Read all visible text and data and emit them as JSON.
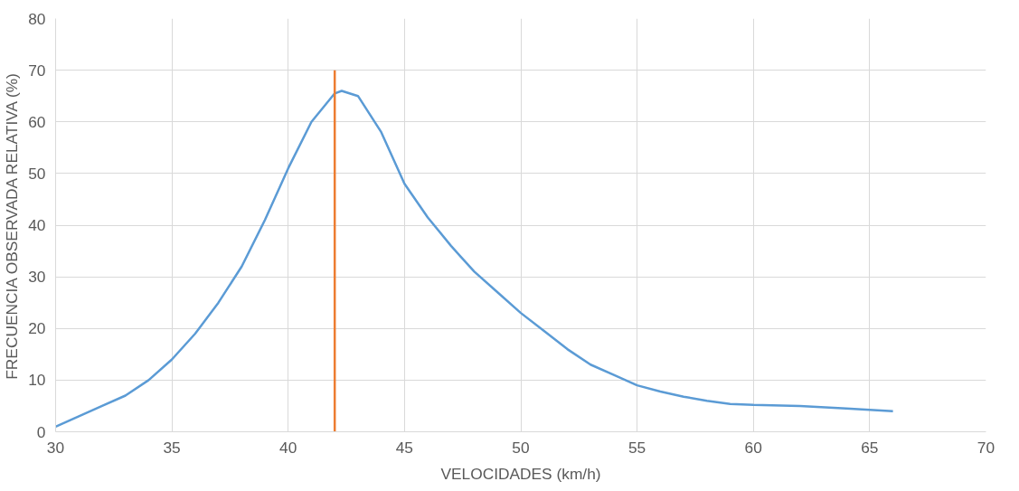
{
  "chart_data": {
    "type": "line",
    "xlabel": "VELOCIDADES (km/h)",
    "ylabel": "FRECUENCIA OBSERVADA RELATIVA (%)",
    "xlim": [
      30,
      70
    ],
    "xticks": [
      30,
      35,
      40,
      45,
      50,
      55,
      60,
      65,
      70
    ],
    "ylim": [
      0,
      80
    ],
    "yticks": [
      0,
      10,
      20,
      30,
      40,
      50,
      60,
      70,
      80
    ],
    "grid": true,
    "series": [
      {
        "color": "#5b9bd5",
        "x": [
          30,
          31,
          32,
          33,
          34,
          35,
          36,
          37,
          38,
          39,
          40,
          41,
          42,
          42.3,
          43,
          44,
          45,
          46,
          47,
          48,
          49,
          50,
          51,
          52,
          53,
          54,
          55,
          56,
          57,
          58,
          59,
          60,
          62,
          64,
          66
        ],
        "values": [
          1,
          3,
          5,
          7,
          10,
          14,
          19,
          25,
          32,
          41,
          51,
          60,
          65.5,
          66,
          65,
          58,
          48,
          41.5,
          36,
          31,
          27,
          23,
          19.5,
          16,
          13,
          11,
          9,
          7.8,
          6.8,
          6,
          5.4,
          5.2,
          5,
          4.5,
          4
        ]
      },
      {
        "color": "#ed7d31",
        "x": [
          42,
          42
        ],
        "values": [
          0,
          70
        ]
      }
    ]
  }
}
